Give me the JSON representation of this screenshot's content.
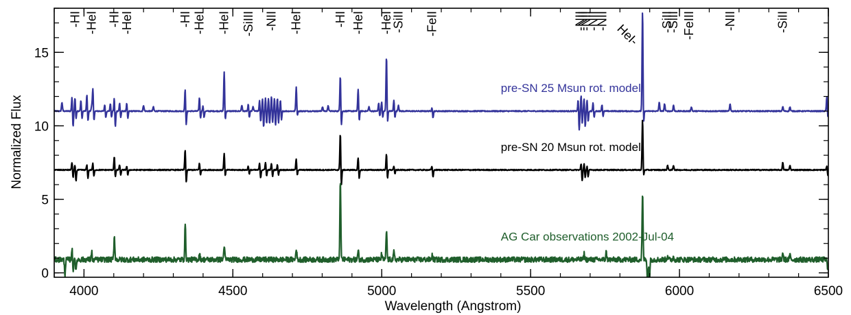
{
  "chart_data": {
    "type": "line",
    "title": "",
    "xlabel": "Wavelength (Angstrom)",
    "ylabel": "Normalized Flux",
    "xlim": [
      3900,
      6500
    ],
    "ylim": [
      -0.3,
      18
    ],
    "x_ticks": [
      4000,
      4500,
      5000,
      5500,
      6000,
      6500
    ],
    "x_tick_labels": [
      "4000",
      "4500",
      "5000",
      "5500",
      "6000",
      "6500"
    ],
    "y_ticks": [
      0,
      5,
      10,
      15
    ],
    "y_tick_labels": [
      "0",
      "5",
      "10",
      "15"
    ],
    "grid": false,
    "legend": "none",
    "series": [
      {
        "name": "pre-SN 25 Msun rot. model",
        "color": "#33339a",
        "baseline": 11.0,
        "label_x": 5400,
        "label_y": 12.3,
        "lines": [
          {
            "x": 3926,
            "h": 0.6
          },
          {
            "x": 3960,
            "h": 1.1,
            "d": 1.2
          },
          {
            "x": 3970,
            "h": 1.0,
            "d": 0.6
          },
          {
            "x": 3990,
            "h": 0.8,
            "d": 0.6
          },
          {
            "x": 4010,
            "h": 1.2,
            "d": 0.8
          },
          {
            "x": 4026,
            "h": 0.4
          },
          {
            "x": 4030,
            "h": 1.6,
            "d": 0.8
          },
          {
            "x": 4070,
            "h": 0.5,
            "d": 0.5
          },
          {
            "x": 4089,
            "h": 0.6,
            "d": 0.5
          },
          {
            "x": 4102,
            "h": 1.0,
            "d": 1.2
          },
          {
            "x": 4120,
            "h": 0.6,
            "d": 0.5
          },
          {
            "x": 4144,
            "h": 0.6,
            "d": 0.6
          },
          {
            "x": 4200,
            "h": 0.4
          },
          {
            "x": 4233,
            "h": 0.3
          },
          {
            "x": 4340,
            "h": 1.6,
            "d": 1.1
          },
          {
            "x": 4388,
            "h": 1.0,
            "d": 0.6
          },
          {
            "x": 4400,
            "h": 0.4,
            "d": 0.5
          },
          {
            "x": 4471,
            "h": 2.8,
            "d": 0.8
          },
          {
            "x": 4530,
            "h": 0.4
          },
          {
            "x": 4552,
            "h": 0.5,
            "d": 0.5
          },
          {
            "x": 4568,
            "h": 0.3
          },
          {
            "x": 4590,
            "h": 0.8,
            "d": 0.8
          },
          {
            "x": 4600,
            "h": 1.0,
            "d": 1.2
          },
          {
            "x": 4610,
            "h": 1.0,
            "d": 1.0
          },
          {
            "x": 4620,
            "h": 1.0,
            "d": 1.0
          },
          {
            "x": 4630,
            "h": 1.1,
            "d": 0.9
          },
          {
            "x": 4640,
            "h": 1.0,
            "d": 1.1
          },
          {
            "x": 4650,
            "h": 1.0,
            "d": 0.9
          },
          {
            "x": 4660,
            "h": 0.8,
            "d": 0.7
          },
          {
            "x": 4713,
            "h": 1.7,
            "d": 0.4
          },
          {
            "x": 4801,
            "h": 0.3
          },
          {
            "x": 4820,
            "h": 0.4
          },
          {
            "x": 4861,
            "h": 2.6,
            "d": 1.2
          },
          {
            "x": 4921,
            "h": 1.6,
            "d": 0.8
          },
          {
            "x": 4957,
            "h": 0.3
          },
          {
            "x": 4990,
            "h": 0.6,
            "d": 0.4
          },
          {
            "x": 5000,
            "h": 0.7,
            "d": 0.5
          },
          {
            "x": 5016,
            "h": 3.9,
            "d": 1.0
          },
          {
            "x": 5041,
            "h": 0.8,
            "d": 0.5
          },
          {
            "x": 5056,
            "h": 0.4
          },
          {
            "x": 5169,
            "h": 0.3,
            "d": 0.5
          },
          {
            "x": 5660,
            "h": 0.9,
            "d": 1.4
          },
          {
            "x": 5670,
            "h": 1.2,
            "d": 1.0
          },
          {
            "x": 5680,
            "h": 1.0,
            "d": 1.2
          },
          {
            "x": 5690,
            "h": 0.8,
            "d": 0.8
          },
          {
            "x": 5710,
            "h": 0.6,
            "d": 0.5
          },
          {
            "x": 5740,
            "h": 0.5,
            "d": 0.4
          },
          {
            "x": 5876,
            "h": 7.0,
            "d": 1.2
          },
          {
            "x": 5932,
            "h": 0.6
          },
          {
            "x": 5950,
            "h": 0.5
          },
          {
            "x": 5980,
            "h": 0.4
          },
          {
            "x": 6040,
            "h": 0.3
          },
          {
            "x": 6170,
            "h": 0.5
          },
          {
            "x": 6347,
            "h": 0.3
          },
          {
            "x": 6371,
            "h": 0.3
          },
          {
            "x": 6495,
            "h": 1.0,
            "d": 0.5
          }
        ]
      },
      {
        "name": "pre-SN 20 Msun rot. model",
        "color": "#000000",
        "baseline": 7.0,
        "label_x": 5400,
        "label_y": 8.3,
        "lines": [
          {
            "x": 3960,
            "h": 0.6,
            "d": 0.6
          },
          {
            "x": 3970,
            "h": 0.4,
            "d": 0.8
          },
          {
            "x": 4010,
            "h": 0.4,
            "d": 0.6
          },
          {
            "x": 4030,
            "h": 0.5,
            "d": 0.5
          },
          {
            "x": 4102,
            "h": 1.0,
            "d": 0.6
          },
          {
            "x": 4120,
            "h": 0.4,
            "d": 0.4
          },
          {
            "x": 4144,
            "h": 0.3,
            "d": 0.4
          },
          {
            "x": 4340,
            "h": 1.5,
            "d": 1.0
          },
          {
            "x": 4388,
            "h": 0.5,
            "d": 0.4
          },
          {
            "x": 4471,
            "h": 1.2,
            "d": 0.5
          },
          {
            "x": 4552,
            "h": 0.3,
            "d": 0.3
          },
          {
            "x": 4590,
            "h": 0.5,
            "d": 0.6
          },
          {
            "x": 4610,
            "h": 0.6,
            "d": 0.5
          },
          {
            "x": 4630,
            "h": 0.5,
            "d": 0.5
          },
          {
            "x": 4650,
            "h": 0.4,
            "d": 0.4
          },
          {
            "x": 4713,
            "h": 0.8,
            "d": 0.4
          },
          {
            "x": 4861,
            "h": 2.7,
            "d": 1.3
          },
          {
            "x": 4921,
            "h": 0.9,
            "d": 0.7
          },
          {
            "x": 5016,
            "h": 1.2,
            "d": 0.7
          },
          {
            "x": 5041,
            "h": 0.3,
            "d": 0.3
          },
          {
            "x": 5169,
            "h": 0.3,
            "d": 0.5
          },
          {
            "x": 5670,
            "h": 0.5,
            "d": 0.8
          },
          {
            "x": 5680,
            "h": 0.5,
            "d": 0.6
          },
          {
            "x": 5690,
            "h": 0.3,
            "d": 0.5
          },
          {
            "x": 5876,
            "h": 3.5,
            "d": 0.6
          },
          {
            "x": 5960,
            "h": 0.3
          },
          {
            "x": 5980,
            "h": 0.3
          },
          {
            "x": 6347,
            "h": 0.5
          },
          {
            "x": 6371,
            "h": 0.3
          },
          {
            "x": 6495,
            "h": 0.3,
            "d": 0.4
          }
        ]
      },
      {
        "name": "AG Car observations 2002-Jul-04",
        "color": "#1f5e2b",
        "baseline": 0.9,
        "label_x": 5400,
        "label_y": 2.2,
        "lines": [
          {
            "x": 3933,
            "h": 0.0,
            "d": 1.0
          },
          {
            "x": 3960,
            "h": 0.9,
            "d": 0.9
          },
          {
            "x": 3970,
            "h": 0.2,
            "d": 0.9
          },
          {
            "x": 4026,
            "h": 0.6,
            "d": 0.2
          },
          {
            "x": 4102,
            "h": 1.6
          },
          {
            "x": 4340,
            "h": 2.4
          },
          {
            "x": 4388,
            "h": 0.4
          },
          {
            "x": 4471,
            "h": 1.0
          },
          {
            "x": 4713,
            "h": 0.8
          },
          {
            "x": 4861,
            "h": 5.3
          },
          {
            "x": 4921,
            "h": 0.6
          },
          {
            "x": 5000,
            "h": 0.4
          },
          {
            "x": 5016,
            "h": 2.0
          },
          {
            "x": 5041,
            "h": 0.5
          },
          {
            "x": 5169,
            "h": 0.3
          },
          {
            "x": 5680,
            "h": 0.4
          },
          {
            "x": 5754,
            "h": 0.5
          },
          {
            "x": 5876,
            "h": 4.5
          },
          {
            "x": 5890,
            "h": 0.0,
            "d": 1.8
          },
          {
            "x": 5896,
            "h": 0.0,
            "d": 1.4
          },
          {
            "x": 5960,
            "h": 0.3
          },
          {
            "x": 5980,
            "h": 0.2
          },
          {
            "x": 6347,
            "h": 0.5
          },
          {
            "x": 6371,
            "h": 0.3
          },
          {
            "x": 6495,
            "h": 0.0,
            "d": 0.8
          }
        ]
      }
    ],
    "line_ids": [
      {
        "text": "-HI",
        "x": 3970
      },
      {
        "text": "-HeI",
        "x": 4026
      },
      {
        "text": "-HI",
        "x": 4102
      },
      {
        "text": "-HeI",
        "x": 4144
      },
      {
        "text": "-HI",
        "x": 4340
      },
      {
        "text": "-HeI",
        "x": 4388
      },
      {
        "text": "-HeI",
        "x": 4471
      },
      {
        "text": "-SiIII",
        "x": 4552
      },
      {
        "text": "-NII",
        "x": 4630
      },
      {
        "text": "-HeI",
        "x": 4713
      },
      {
        "text": "-HI",
        "x": 4861
      },
      {
        "text": "-HeI",
        "x": 4921
      },
      {
        "text": "-HeI",
        "x": 5016
      },
      {
        "text": "-SiII",
        "x": 5056
      },
      {
        "text": "-FeII",
        "x": 5169
      },
      {
        "text": "-NII",
        "x": 5667
      },
      {
        "text": "-NII",
        "x": 5676
      },
      {
        "text": "-NII",
        "x": 5686
      },
      {
        "text": "-NII",
        "x": 5710
      },
      {
        "text": "-NII",
        "x": 5740
      },
      {
        "text": "-SiII",
        "x": 5958
      },
      {
        "text": "-SiII",
        "x": 5979
      },
      {
        "text": "-FeIII",
        "x": 6032
      },
      {
        "text": "-NII",
        "x": 6170
      },
      {
        "text": "-SiII",
        "x": 6347
      }
    ],
    "rotated_label": {
      "text": "HeI-",
      "x": 5876
    }
  }
}
